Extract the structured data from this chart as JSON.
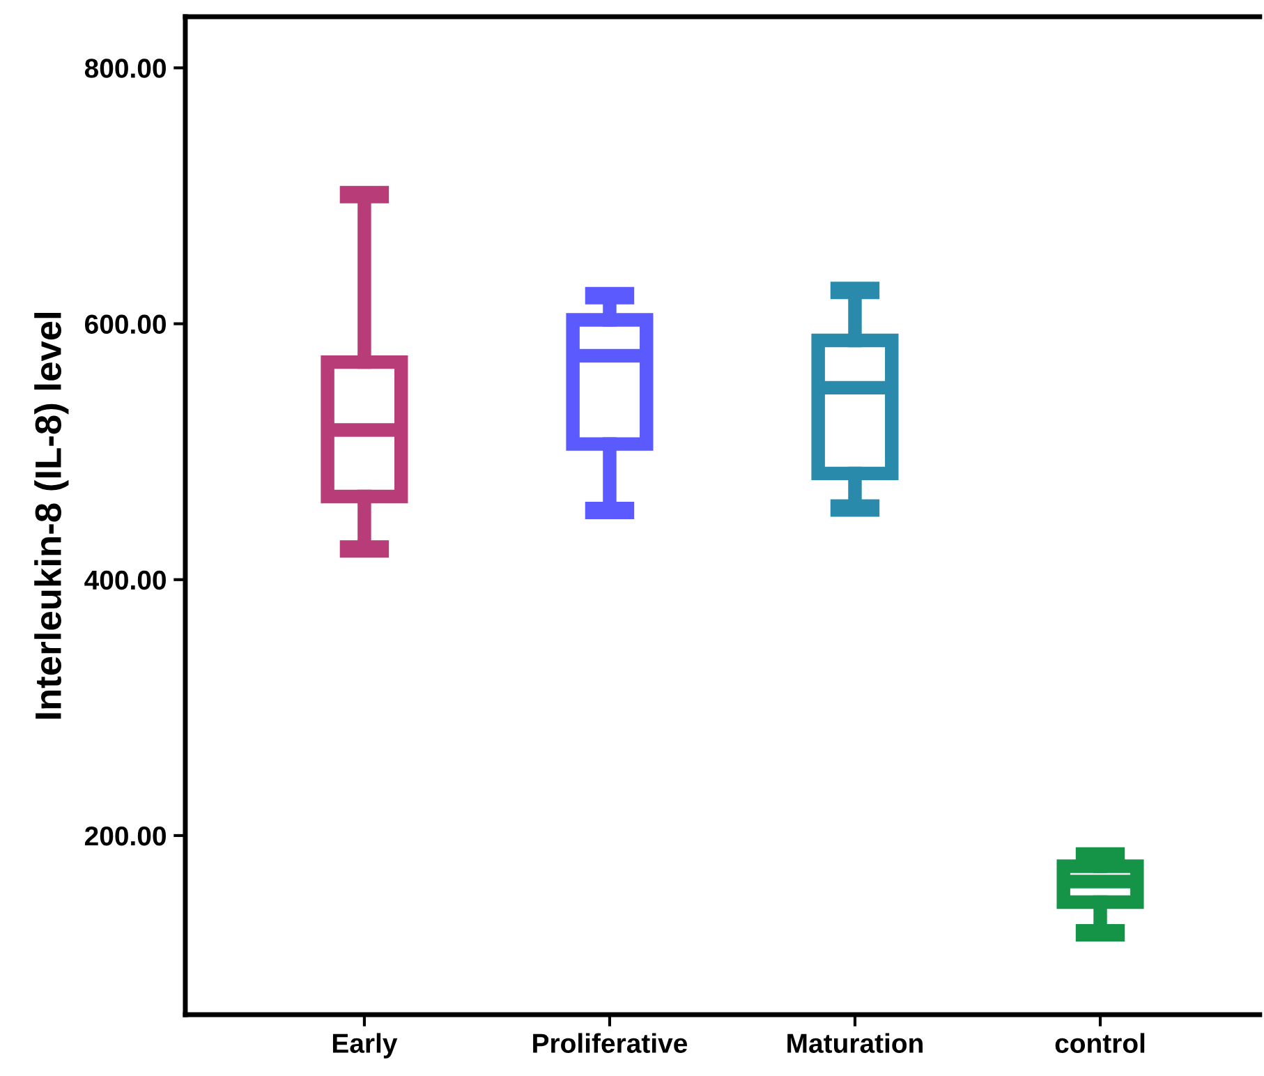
{
  "chart_data": {
    "type": "box",
    "ylabel": "Interleukin-8 (IL-8) level",
    "categories": [
      "Early",
      "Proliferative",
      "Maturation",
      "control"
    ],
    "colors": [
      "#b83c78",
      "#5a5aff",
      "#2a8aab",
      "#159448"
    ],
    "boxes": [
      {
        "low": 424,
        "q1": 465,
        "median": 517,
        "q3": 570,
        "high": 701
      },
      {
        "low": 454,
        "q1": 506,
        "median": 575,
        "q3": 603,
        "high": 622
      },
      {
        "low": 456,
        "q1": 483,
        "median": 550,
        "q3": 587,
        "high": 626
      },
      {
        "low": 124,
        "q1": 148,
        "median": 164,
        "q3": 176,
        "high": 184
      }
    ],
    "ylim": [
      60,
      840
    ],
    "yticks": [
      {
        "value": 200,
        "label": "200.00"
      },
      {
        "value": 400,
        "label": "400.00"
      },
      {
        "value": 600,
        "label": "600.00"
      },
      {
        "value": 800,
        "label": "800.00"
      }
    ],
    "grid": false
  }
}
